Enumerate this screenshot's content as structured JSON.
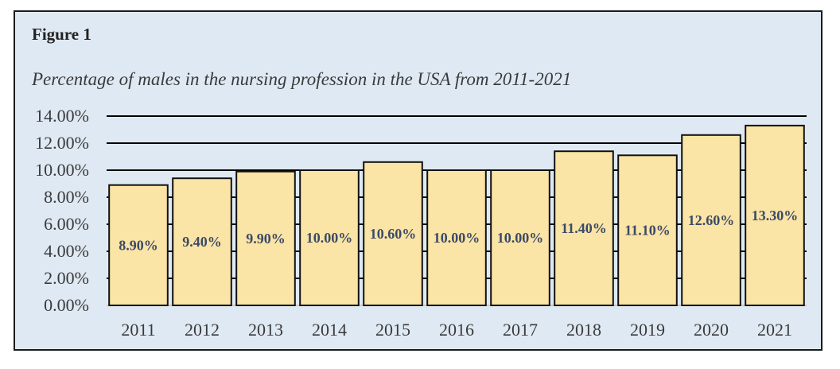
{
  "figure": {
    "label": "Figure 1",
    "title": "Percentage of males in the nursing profession in the USA from 2011-2021"
  },
  "colors": {
    "background": "#dfe9f3",
    "bar_fill": "#fae4a6",
    "bar_stroke": "#111111",
    "data_label": "#3c4a66"
  },
  "chart_data": {
    "type": "bar",
    "title": "Percentage of males in the nursing profession in the USA from 2011-2021",
    "xlabel": "",
    "ylabel": "",
    "ylim": [
      0,
      14
    ],
    "y_ticks": [
      "0.00%",
      "2.00%",
      "4.00%",
      "6.00%",
      "8.00%",
      "10.00%",
      "12.00%",
      "14.00%"
    ],
    "y_tick_values": [
      0,
      2,
      4,
      6,
      8,
      10,
      12,
      14
    ],
    "grid": true,
    "legend": "none",
    "categories": [
      "2011",
      "2012",
      "2013",
      "2014",
      "2015",
      "2016",
      "2017",
      "2018",
      "2019",
      "2020",
      "2021"
    ],
    "values": [
      8.9,
      9.4,
      9.9,
      10.0,
      10.6,
      10.0,
      10.0,
      11.4,
      11.1,
      12.6,
      13.3
    ],
    "data_labels": [
      "8.90%",
      "9.40%",
      "9.90%",
      "10.00%",
      "10.60%",
      "10.00%",
      "10.00%",
      "11.40%",
      "11.10%",
      "12.60%",
      "13.30%"
    ]
  }
}
